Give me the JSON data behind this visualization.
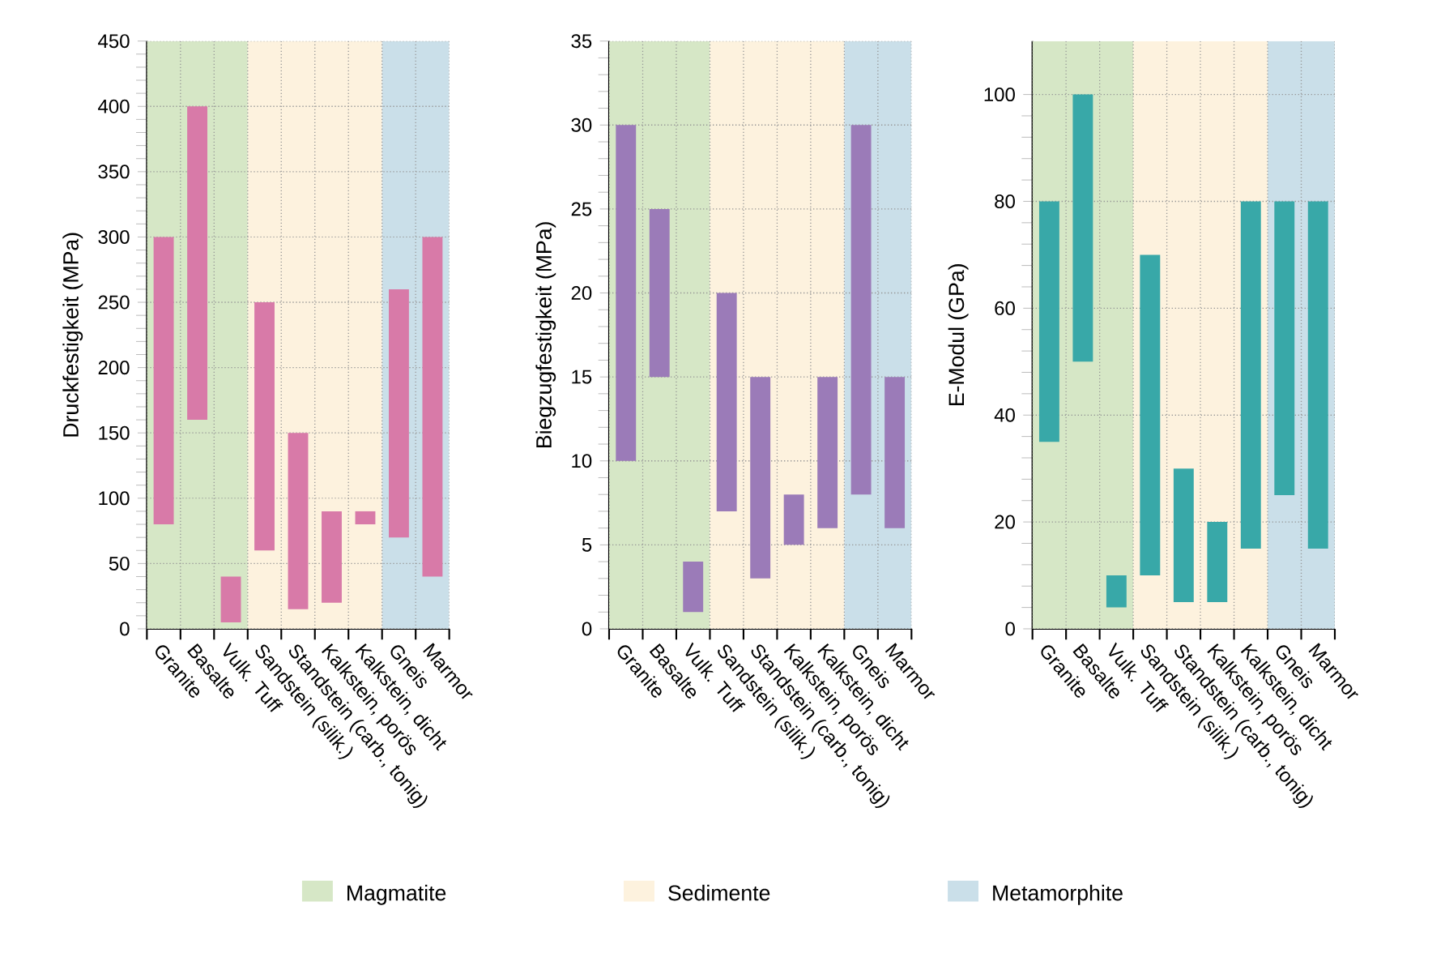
{
  "chart_data": [
    {
      "type": "bar",
      "ylabel": "Druckfestigkeit (MPa)",
      "categories": [
        "Granite",
        "Basalte",
        "Vulk. Tuff",
        "Sandstein (silik.)",
        "Standstein (carb., tonig)",
        "Kalkstein, porös",
        "Kalkstein, dicht",
        "Gneis",
        "Marmor"
      ],
      "base": [
        80,
        160,
        5,
        60,
        15,
        20,
        80,
        70,
        40
      ],
      "values": [
        220,
        240,
        35,
        190,
        135,
        70,
        10,
        190,
        260
      ],
      "color": "#d87aa8",
      "ylim": [
        0,
        450
      ],
      "yticks": [
        0,
        50,
        100,
        150,
        200,
        250,
        300,
        350,
        400,
        450
      ],
      "grid": true,
      "bands": [
        {
          "axis": "x",
          "from": "Granite",
          "to": "Vulk. Tuff",
          "color": "#d6e7c6"
        },
        {
          "axis": "x",
          "from": "Sandstein (silik.)",
          "to": "Kalkstein, dicht",
          "color": "#fdf2de"
        },
        {
          "axis": "x",
          "from": "Gneis",
          "to": "Marmor",
          "color": "#cadfe9"
        }
      ]
    },
    {
      "type": "bar",
      "ylabel": "Biegzugfestigkeit (MPa)",
      "categories": [
        "Granite",
        "Basalte",
        "Vulk. Tuff",
        "Sandstein (silik.)",
        "Standstein (carb., tonig)",
        "Kalkstein, porös",
        "Kalkstein, dicht",
        "Gneis",
        "Marmor"
      ],
      "base": [
        10,
        15,
        1,
        7,
        3,
        5,
        6,
        8,
        6
      ],
      "values": [
        20,
        10,
        3,
        13,
        12,
        3,
        9,
        22,
        9
      ],
      "color": "#9b7bb8",
      "ylim": [
        0,
        35
      ],
      "yticks": [
        0,
        5,
        10,
        15,
        20,
        25,
        30,
        35
      ],
      "grid": true,
      "legend": "bottom",
      "bands": [
        {
          "axis": "x",
          "from": "Granite",
          "to": "Vulk. Tuff",
          "label": "Magmatite",
          "color": "#d6e7c6"
        },
        {
          "axis": "x",
          "from": "Sandstein (silik.)",
          "to": "Kalkstein, dicht",
          "label": "Sedimente",
          "color": "#fdf2de"
        },
        {
          "axis": "x",
          "from": "Gneis",
          "to": "Marmor",
          "label": "Metamorphite",
          "color": "#cadfe9"
        }
      ]
    },
    {
      "type": "bar",
      "ylabel": "E-Modul (GPa)",
      "categories": [
        "Granite",
        "Basalte",
        "Vulk. Tuff",
        "Sandstein (silik.)",
        "Standstein (carb., tonig)",
        "Kalkstein, porös",
        "Kalkstein, dicht",
        "Gneis",
        "Marmor"
      ],
      "base": [
        35,
        50,
        4,
        10,
        5,
        5,
        15,
        25,
        15
      ],
      "values": [
        45,
        50,
        6,
        60,
        25,
        15,
        65,
        55,
        65
      ],
      "color": "#38a8a8",
      "ylim": [
        0,
        110
      ],
      "yticks": [
        0,
        20,
        40,
        60,
        80,
        100
      ],
      "grid": true,
      "bands": [
        {
          "axis": "x",
          "from": "Granite",
          "to": "Vulk. Tuff",
          "color": "#d6e7c6"
        },
        {
          "axis": "x",
          "from": "Sandstein (silik.)",
          "to": "Kalkstein, dicht",
          "color": "#fdf2de"
        },
        {
          "axis": "x",
          "from": "Gneis",
          "to": "Marmor",
          "color": "#cadfe9"
        }
      ]
    }
  ]
}
